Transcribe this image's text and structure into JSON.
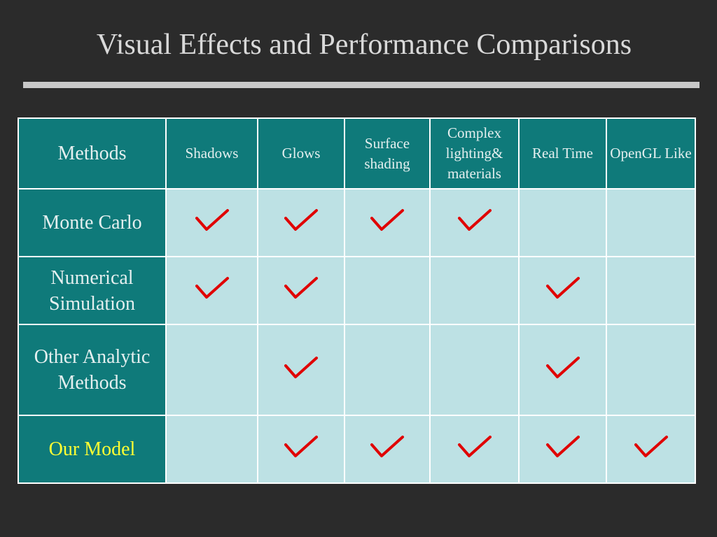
{
  "slide": {
    "title": "Visual Effects and Performance Comparisons"
  },
  "table": {
    "corner_label": "Methods",
    "columns": [
      "Shadows",
      "Glows",
      "Surface shading",
      "Complex lighting& materials",
      "Real Time",
      "OpenGL Like"
    ],
    "rows": [
      {
        "method": "Monte Carlo",
        "checks": [
          true,
          true,
          true,
          true,
          false,
          false
        ]
      },
      {
        "method": "Numerical Simulation",
        "checks": [
          true,
          true,
          false,
          false,
          true,
          false
        ]
      },
      {
        "method": "Other Analytic Methods",
        "checks": [
          false,
          true,
          false,
          false,
          true,
          false
        ]
      },
      {
        "method": "Our Model",
        "checks": [
          false,
          true,
          true,
          true,
          true,
          true
        ]
      }
    ],
    "check_icon": "red-checkmark-icon",
    "colors": {
      "header_bg": "#0f7a7a",
      "cell_bg": "#bde1e4",
      "check": "#e00000",
      "highlight_text": "#ffff33"
    }
  }
}
